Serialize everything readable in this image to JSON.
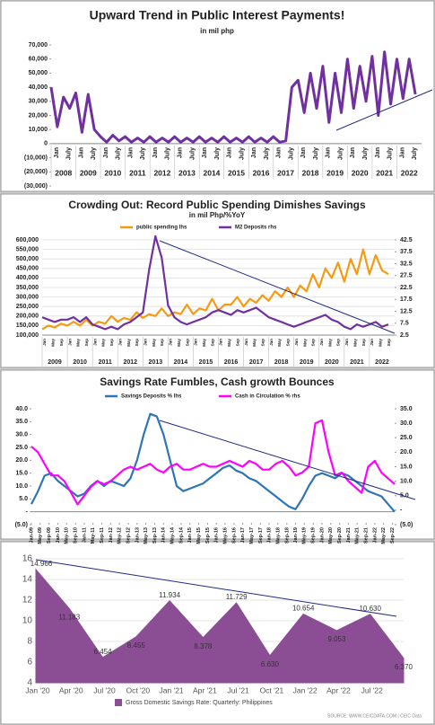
{
  "chart_data": [
    {
      "type": "line",
      "title": "Upward Trend in Public Interest Payments!",
      "subtitle": "in mil php",
      "color": "#7030a0",
      "x": [
        2008,
        2008.25,
        2008.5,
        2008.75,
        2009,
        2009.25,
        2009.5,
        2009.75,
        2010,
        2010.25,
        2010.5,
        2010.75,
        2011,
        2011.25,
        2011.5,
        2011.75,
        2012,
        2012.25,
        2012.5,
        2012.75,
        2013,
        2013.25,
        2013.5,
        2013.75,
        2014,
        2014.25,
        2014.5,
        2014.75,
        2015,
        2015.25,
        2015.5,
        2015.75,
        2016,
        2016.25,
        2016.5,
        2016.75,
        2017,
        2017.25,
        2017.5,
        2017.75,
        2018,
        2018.25,
        2018.5,
        2018.75,
        2019,
        2019.25,
        2019.5,
        2019.75,
        2020,
        2020.25,
        2020.5,
        2020.75,
        2021,
        2021.25,
        2021.5,
        2021.75,
        2022,
        2022.25,
        2022.5,
        2022.75
      ],
      "values": [
        40000,
        12000,
        33000,
        25000,
        36000,
        8000,
        35000,
        10000,
        5000,
        1000,
        6000,
        2000,
        5000,
        1000,
        4000,
        1000,
        5000,
        1000,
        4000,
        1000,
        5000,
        1000,
        4000,
        1000,
        5000,
        1000,
        4000,
        1000,
        5000,
        1000,
        4000,
        1000,
        5000,
        1000,
        4000,
        1000,
        5000,
        1000,
        2000,
        40000,
        45000,
        22000,
        50000,
        25000,
        55000,
        15000,
        50000,
        22000,
        60000,
        25000,
        55000,
        30000,
        62000,
        20000,
        65000,
        28000,
        60000,
        32000,
        60000,
        35000
      ],
      "xlim": [
        2008,
        2023
      ],
      "xticks": [
        {
          "value": 2008.5,
          "label": "2008"
        },
        {
          "value": 2009.5,
          "label": "2009"
        },
        {
          "value": 2010.5,
          "label": "2010"
        },
        {
          "value": 2011.5,
          "label": "2011"
        },
        {
          "value": 2012.5,
          "label": "2012"
        },
        {
          "value": 2013.5,
          "label": "2013"
        },
        {
          "value": 2014.5,
          "label": "2014"
        },
        {
          "value": 2015.5,
          "label": "2015"
        },
        {
          "value": 2016.5,
          "label": "2016"
        },
        {
          "value": 2017.5,
          "label": "2017"
        },
        {
          "value": 2018.5,
          "label": "2018"
        },
        {
          "value": 2019.5,
          "label": "2019"
        },
        {
          "value": 2020.5,
          "label": "2020"
        },
        {
          "value": 2021.5,
          "label": "2021"
        },
        {
          "value": 2022.5,
          "label": "2022"
        }
      ],
      "minor_tick_labels": [
        "Jan",
        "July"
      ],
      "ylim": [
        -30000,
        70000
      ],
      "yticks": [
        {
          "value": 70000,
          "label": "70,000"
        },
        {
          "value": 60000,
          "label": "60,000"
        },
        {
          "value": 50000,
          "label": "50,000"
        },
        {
          "value": 40000,
          "label": "40,000"
        },
        {
          "value": 30000,
          "label": "30,000"
        },
        {
          "value": 20000,
          "label": "20,000"
        },
        {
          "value": 10000,
          "label": "10,000"
        },
        0,
        {
          "value": -10000,
          "label": "(10,000)"
        },
        {
          "value": -20000,
          "label": "(20,000)"
        },
        {
          "value": -30000,
          "label": "(30,000)"
        }
      ],
      "grid": false
    },
    {
      "type": "line",
      "title": "Crowding Out: Record Public Spending Dimishes Savings",
      "subtitle": "in mil Php/%YoY",
      "x": [
        2009,
        2009.25,
        2009.5,
        2009.75,
        2010,
        2010.25,
        2010.5,
        2010.75,
        2011,
        2011.25,
        2011.5,
        2011.75,
        2012,
        2012.25,
        2012.5,
        2012.75,
        2013,
        2013.25,
        2013.5,
        2013.75,
        2014,
        2014.25,
        2014.5,
        2014.75,
        2015,
        2015.25,
        2015.5,
        2015.75,
        2016,
        2016.25,
        2016.5,
        2016.75,
        2017,
        2017.25,
        2017.5,
        2017.75,
        2018,
        2018.25,
        2018.5,
        2018.75,
        2019,
        2019.25,
        2019.5,
        2019.75,
        2020,
        2020.25,
        2020.5,
        2020.75,
        2021,
        2021.25,
        2021.5,
        2021.75,
        2022,
        2022.25,
        2022.5,
        2022.75
      ],
      "series": [
        {
          "name": "public spending lhs",
          "color": "#f59a14",
          "values": [
            130000,
            150000,
            140000,
            160000,
            150000,
            170000,
            150000,
            180000,
            150000,
            170000,
            160000,
            200000,
            170000,
            190000,
            180000,
            220000,
            190000,
            210000,
            200000,
            240000,
            200000,
            220000,
            210000,
            260000,
            210000,
            240000,
            230000,
            290000,
            230000,
            260000,
            260000,
            300000,
            250000,
            290000,
            270000,
            310000,
            280000,
            330000,
            300000,
            350000,
            300000,
            360000,
            330000,
            420000,
            350000,
            450000,
            400000,
            480000,
            380000,
            500000,
            420000,
            550000,
            420000,
            520000,
            440000,
            420000
          ]
        },
        {
          "name": "M2 Deposits rhs",
          "color": "#7030a0",
          "axis": "y2",
          "values": [
            10,
            9,
            8,
            9,
            9,
            10,
            8,
            10,
            7,
            6,
            5,
            6,
            5,
            7,
            8,
            10,
            12,
            30,
            44,
            35,
            15,
            10,
            8,
            7,
            8,
            9,
            10,
            12,
            13,
            12,
            11,
            13,
            12,
            13,
            14,
            12,
            10,
            9,
            8,
            7,
            6,
            7,
            8,
            9,
            10,
            11,
            9,
            8,
            6,
            5,
            7,
            6,
            7,
            8,
            6,
            7
          ]
        }
      ],
      "xlim": [
        2009,
        2023
      ],
      "xticks": [
        {
          "value": 2009.5,
          "label": "2009"
        },
        {
          "value": 2010.5,
          "label": "2010"
        },
        {
          "value": 2011.5,
          "label": "2011"
        },
        {
          "value": 2012.5,
          "label": "2012"
        },
        {
          "value": 2013.5,
          "label": "2013"
        },
        {
          "value": 2014.5,
          "label": "2014"
        },
        {
          "value": 2015.5,
          "label": "2015"
        },
        {
          "value": 2016.5,
          "label": "2016"
        },
        {
          "value": 2017.5,
          "label": "2017"
        },
        {
          "value": 2018.5,
          "label": "2018"
        },
        {
          "value": 2019.5,
          "label": "2019"
        },
        {
          "value": 2020.5,
          "label": "2020"
        },
        {
          "value": 2021.5,
          "label": "2021"
        },
        {
          "value": 2022.5,
          "label": "2022"
        }
      ],
      "minor_tick_labels": [
        "Jan",
        "May",
        "Sep"
      ],
      "ylim": [
        100000,
        600000
      ],
      "yticks": [
        {
          "value": 600000,
          "label": "600,000"
        },
        {
          "value": 550000,
          "label": "550,000"
        },
        {
          "value": 500000,
          "label": "500,000"
        },
        {
          "value": 450000,
          "label": "450,000"
        },
        {
          "value": 400000,
          "label": "400,000"
        },
        {
          "value": 350000,
          "label": "350,000"
        },
        {
          "value": 300000,
          "label": "300,000"
        },
        {
          "value": 250000,
          "label": "250,000"
        },
        {
          "value": 200000,
          "label": "200,000"
        },
        {
          "value": 150000,
          "label": "150,000"
        },
        {
          "value": 100000,
          "label": "100,000"
        }
      ],
      "y2lim": [
        2.5,
        42.5
      ],
      "y2ticks": [
        42.5,
        37.5,
        32.5,
        27.5,
        22.5,
        17.5,
        12.5,
        7.5,
        2.5
      ],
      "grid": true
    },
    {
      "type": "line",
      "title": "Savings Rate Fumbles, Cash growth Bounces",
      "x": [
        2009,
        2009.25,
        2009.5,
        2009.75,
        2010,
        2010.25,
        2010.5,
        2010.75,
        2011,
        2011.25,
        2011.5,
        2011.75,
        2012,
        2012.25,
        2012.5,
        2012.75,
        2013,
        2013.25,
        2013.5,
        2013.75,
        2014,
        2014.25,
        2014.5,
        2014.75,
        2015,
        2015.25,
        2015.5,
        2015.75,
        2016,
        2016.25,
        2016.5,
        2016.75,
        2017,
        2017.25,
        2017.5,
        2017.75,
        2018,
        2018.25,
        2018.5,
        2018.75,
        2019,
        2019.25,
        2019.5,
        2019.75,
        2020,
        2020.25,
        2020.5,
        2020.75,
        2021,
        2021.25,
        2021.5,
        2021.75,
        2022,
        2022.25,
        2022.5,
        2022.75
      ],
      "series": [
        {
          "name": "Savings Deposits % lhs",
          "color": "#2e75b6",
          "values": [
            3,
            8,
            14,
            15,
            12,
            10,
            8,
            6,
            7,
            10,
            12,
            10,
            12,
            11,
            10,
            13,
            20,
            30,
            38,
            37,
            30,
            20,
            10,
            8,
            9,
            10,
            11,
            13,
            15,
            17,
            18,
            16,
            15,
            13,
            12,
            10,
            8,
            6,
            4,
            2,
            1,
            5,
            10,
            14,
            15,
            14,
            13,
            15,
            14,
            12,
            10,
            8,
            7,
            6,
            3,
            0
          ]
        },
        {
          "name": "Cash in Circulation % rhs",
          "color": "#ff00ff",
          "axis": "y2",
          "values": [
            22,
            20,
            16,
            12,
            12,
            10,
            6,
            2,
            5,
            8,
            10,
            9,
            10,
            12,
            14,
            15,
            14,
            15,
            16,
            14,
            13,
            15,
            16,
            14,
            14,
            15,
            16,
            15,
            15,
            16,
            17,
            16,
            15,
            17,
            16,
            14,
            14,
            16,
            17,
            15,
            12,
            13,
            15,
            30,
            31,
            20,
            12,
            13,
            10,
            8,
            6,
            15,
            17,
            13,
            11,
            9
          ]
        }
      ],
      "xlim": [
        2009,
        2022.75
      ],
      "xticks": [
        {
          "value": 2009,
          "label": "Jan-09"
        },
        {
          "value": 2009.33,
          "label": "May-09"
        },
        {
          "value": 2009.67,
          "label": "Sep-09"
        },
        {
          "value": 2010,
          "label": "Jan-10"
        },
        {
          "value": 2010.33,
          "label": "May-10"
        },
        {
          "value": 2010.67,
          "label": "Sep-10"
        },
        {
          "value": 2011,
          "label": "Jan-11"
        },
        {
          "value": 2011.33,
          "label": "May-11"
        },
        {
          "value": 2011.67,
          "label": "Sep-11"
        },
        {
          "value": 2012,
          "label": "Jan-12"
        },
        {
          "value": 2012.33,
          "label": "May-12"
        },
        {
          "value": 2012.67,
          "label": "Sep-12"
        },
        {
          "value": 2013,
          "label": "Jan-13"
        },
        {
          "value": 2013.33,
          "label": "May-13"
        },
        {
          "value": 2013.67,
          "label": "Sep-13"
        },
        {
          "value": 2014,
          "label": "Jan-14"
        },
        {
          "value": 2014.33,
          "label": "May-14"
        },
        {
          "value": 2014.67,
          "label": "Sep-14"
        },
        {
          "value": 2015,
          "label": "Jan-15"
        },
        {
          "value": 2015.33,
          "label": "May-15"
        },
        {
          "value": 2015.67,
          "label": "Sep-15"
        },
        {
          "value": 2016,
          "label": "Jan-16"
        },
        {
          "value": 2016.33,
          "label": "May-16"
        },
        {
          "value": 2016.67,
          "label": "Sep-16"
        },
        {
          "value": 2017,
          "label": "Jan-17"
        },
        {
          "value": 2017.33,
          "label": "May-17"
        },
        {
          "value": 2017.67,
          "label": "Sep-17"
        },
        {
          "value": 2018,
          "label": "Jan-18"
        },
        {
          "value": 2018.33,
          "label": "May-18"
        },
        {
          "value": 2018.67,
          "label": "Sep-18"
        },
        {
          "value": 2019,
          "label": "Jan-19"
        },
        {
          "value": 2019.33,
          "label": "May-19"
        },
        {
          "value": 2019.67,
          "label": "Sep-19"
        },
        {
          "value": 2020,
          "label": "Jan-20"
        },
        {
          "value": 2020.33,
          "label": "May-20"
        },
        {
          "value": 2020.67,
          "label": "Sep-20"
        },
        {
          "value": 2021,
          "label": "Jan-21"
        },
        {
          "value": 2021.33,
          "label": "May-21"
        },
        {
          "value": 2021.67,
          "label": "Sep-21"
        },
        {
          "value": 2022,
          "label": "Jan-22"
        },
        {
          "value": 2022.33,
          "label": "May-22"
        },
        {
          "value": 2022.67,
          "label": "Sep-22"
        }
      ],
      "ylim": [
        -5,
        40
      ],
      "yticks": [
        {
          "value": 40,
          "label": "40.0"
        },
        {
          "value": 35,
          "label": "35.0"
        },
        {
          "value": 30,
          "label": "30.0"
        },
        {
          "value": 25,
          "label": "25.0"
        },
        {
          "value": 20,
          "label": "20.0"
        },
        {
          "value": 15,
          "label": "15.0"
        },
        {
          "value": 10,
          "label": "10.0"
        },
        {
          "value": 5,
          "label": "5.0"
        },
        {
          "value": 0,
          "label": "-"
        },
        {
          "value": -5,
          "label": "(5.0)"
        }
      ],
      "y2lim": [
        -5,
        35
      ],
      "y2ticks": [
        {
          "value": 35,
          "label": "35.0"
        },
        {
          "value": 30,
          "label": "30.0"
        },
        {
          "value": 25,
          "label": "25.0"
        },
        {
          "value": 20,
          "label": "20.0"
        },
        {
          "value": 15,
          "label": "15.0"
        },
        {
          "value": 10,
          "label": "10.0"
        },
        {
          "value": 5,
          "label": "5.0"
        },
        {
          "value": 0,
          "label": "-"
        },
        {
          "value": -5,
          "label": "(5.0)"
        }
      ],
      "grid": false
    },
    {
      "type": "area",
      "color": "#8b4e95",
      "legend": "Gross Domestic Savings Rate: Quarterly: Philippines",
      "source": "SOURCE: WWW.CEICDATA.COM | CEIC Data",
      "categories": [
        "Jan '20",
        "Apr '20",
        "Jul '20",
        "Oct '20",
        "Jan '21",
        "Apr '21",
        "Jul '21",
        "Oct '21",
        "Jan '22",
        "Apr '22",
        "Jul '22",
        null
      ],
      "values": [
        14.966,
        11.183,
        6.454,
        8.455,
        11.934,
        8.378,
        11.729,
        6.63,
        10.654,
        9.053,
        10.63,
        6.37
      ],
      "value_labels": [
        "14.966",
        "11.183",
        "6.454",
        "8.455",
        "11.934",
        "8.378",
        "11.729",
        "6.630",
        "10.654",
        "9.053",
        "10.630",
        "6.370"
      ],
      "ylim": [
        4,
        16
      ],
      "yticks": [
        4,
        6,
        8,
        10,
        12,
        14,
        16
      ],
      "grid": true
    }
  ]
}
